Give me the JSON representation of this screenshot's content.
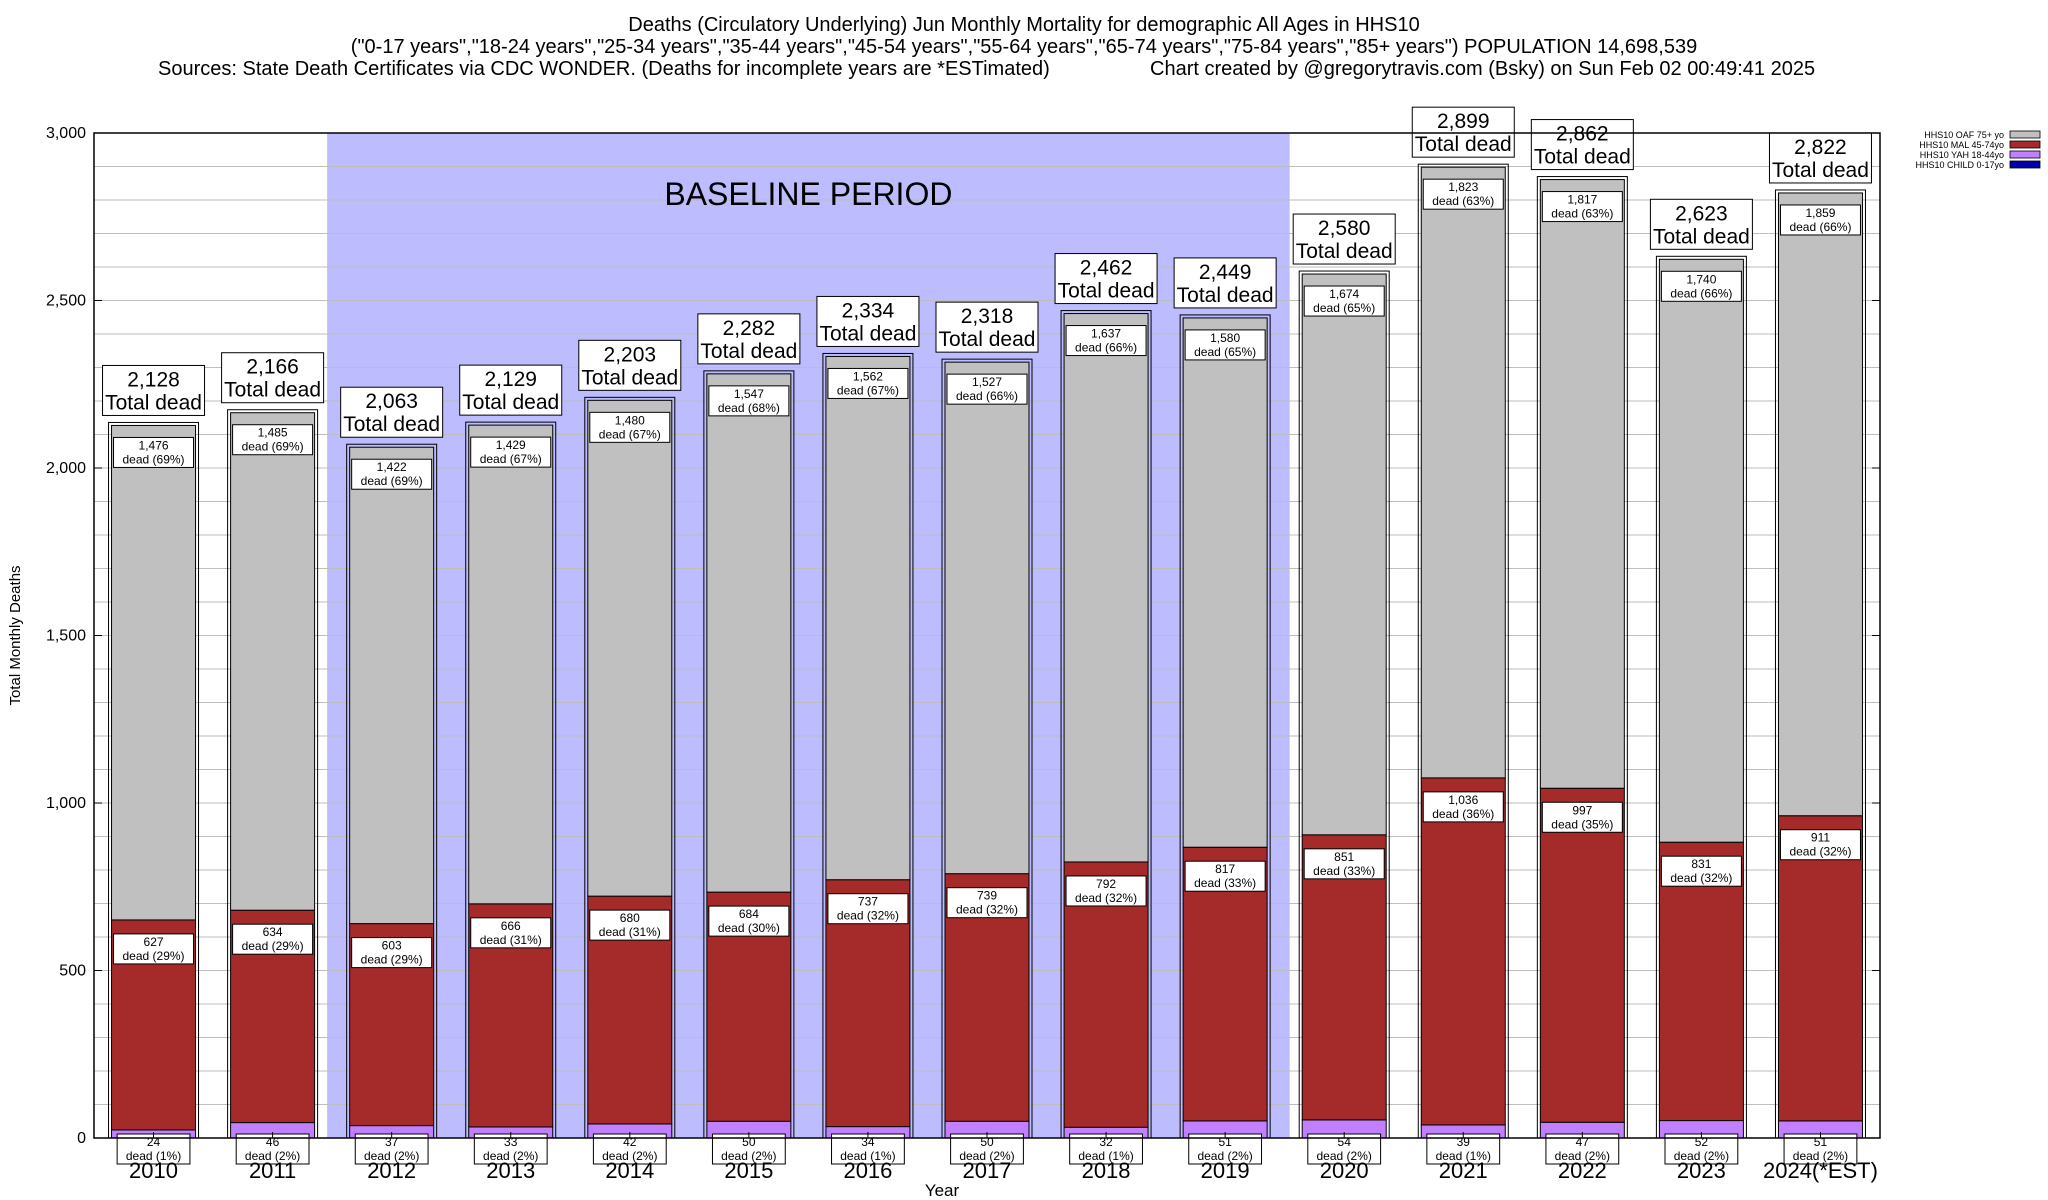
{
  "title": {
    "line1": "Deaths (Circulatory Underlying) Jun Monthly Mortality for demographic All Ages in HHS10",
    "line2": "(\"0-17 years\",\"18-24 years\",\"25-34 years\",\"35-44 years\",\"45-54 years\",\"55-64 years\",\"65-74 years\",\"75-84 years\",\"85+ years\") POPULATION 14,698,539",
    "sources": "Sources: State Death Certificates via CDC WONDER. (Deaths for incomplete years are *ESTimated)",
    "credit": "Chart created by @gregorytravis.com (Bsky) on Sun Feb 02 00:49:41 2025"
  },
  "chart_data": {
    "type": "bar",
    "stacked": true,
    "categories": [
      "2010",
      "2011",
      "2012",
      "2013",
      "2014",
      "2015",
      "2016",
      "2017",
      "2018",
      "2019",
      "2020",
      "2021",
      "2022",
      "2023",
      "2024(*EST)"
    ],
    "xlabel": "Year",
    "ylabel": "Total Monthly Deaths",
    "ylim": [
      0,
      3000
    ],
    "yticks": [
      0,
      500,
      1000,
      1500,
      2000,
      2500,
      3000
    ],
    "ytick_labels": [
      "0",
      "500",
      "1,000",
      "1,500",
      "2,000",
      "2,500",
      "3,000"
    ],
    "grid": true,
    "legend_position": "top-right",
    "baseline": {
      "label": "BASELINE PERIOD",
      "start": "2012",
      "end": "2019"
    },
    "series": [
      {
        "name": "HHS10 CHILD 0-17yo",
        "color": "#0000aa",
        "values": [
          0,
          0,
          0,
          0,
          0,
          0,
          0,
          0,
          0,
          0,
          0,
          0,
          0,
          0,
          0
        ]
      },
      {
        "name": "HHS10 YAH 18-44yo",
        "color": "#c080ff",
        "values": [
          24,
          46,
          37,
          33,
          42,
          50,
          34,
          50,
          32,
          51,
          54,
          39,
          47,
          52,
          51
        ],
        "labels": [
          "24 dead (1%)",
          "46 dead (2%)",
          "37 dead (2%)",
          "33 dead (2%)",
          "42 dead (2%)",
          "50 dead (2%)",
          "34 dead (1%)",
          "50 dead (2%)",
          "32 dead (1%)",
          "51 dead (2%)",
          "54 dead (2%)",
          "39 dead (1%)",
          "47 dead (2%)",
          "52 dead (2%)",
          "51 dead (2%)"
        ]
      },
      {
        "name": "HHS10 MAL 45-74yo",
        "color": "#a52a2a",
        "values": [
          627,
          634,
          603,
          666,
          680,
          684,
          737,
          739,
          792,
          817,
          851,
          1036,
          997,
          831,
          911
        ],
        "labels": [
          "627 dead (29%)",
          "634 dead (29%)",
          "603 dead (29%)",
          "666 dead (31%)",
          "680 dead (31%)",
          "684 dead (30%)",
          "737 dead (32%)",
          "739 dead (32%)",
          "792 dead (32%)",
          "817 dead (33%)",
          "851 dead (33%)",
          "1,036 dead (36%)",
          "997 dead (35%)",
          "831 dead (32%)",
          "911 dead (32%)"
        ]
      },
      {
        "name": "HHS10 OAF 75+ yo",
        "color": "#c0c0c0",
        "values": [
          1476,
          1485,
          1422,
          1429,
          1480,
          1547,
          1562,
          1527,
          1637,
          1580,
          1674,
          1823,
          1817,
          1740,
          1859
        ],
        "labels": [
          "1,476 dead (69%)",
          "1,485 dead (69%)",
          "1,422 dead (69%)",
          "1,429 dead (67%)",
          "1,480 dead (67%)",
          "1,547 dead (68%)",
          "1,562 dead (67%)",
          "1,527 dead (66%)",
          "1,637 dead (66%)",
          "1,580 dead (65%)",
          "1,674 dead (65%)",
          "1,823 dead (63%)",
          "1,817 dead (63%)",
          "1,740 dead (66%)",
          "1,859 dead (66%)"
        ]
      }
    ],
    "totals": [
      2128,
      2166,
      2063,
      2129,
      2203,
      2282,
      2334,
      2318,
      2462,
      2449,
      2580,
      2899,
      2862,
      2623,
      2822
    ],
    "total_labels": [
      "2,128",
      "2,166",
      "2,063",
      "2,129",
      "2,203",
      "2,282",
      "2,334",
      "2,318",
      "2,462",
      "2,449",
      "2,580",
      "2,899",
      "2,862",
      "2,623",
      "2,822"
    ],
    "total_suffix": "Total dead"
  }
}
